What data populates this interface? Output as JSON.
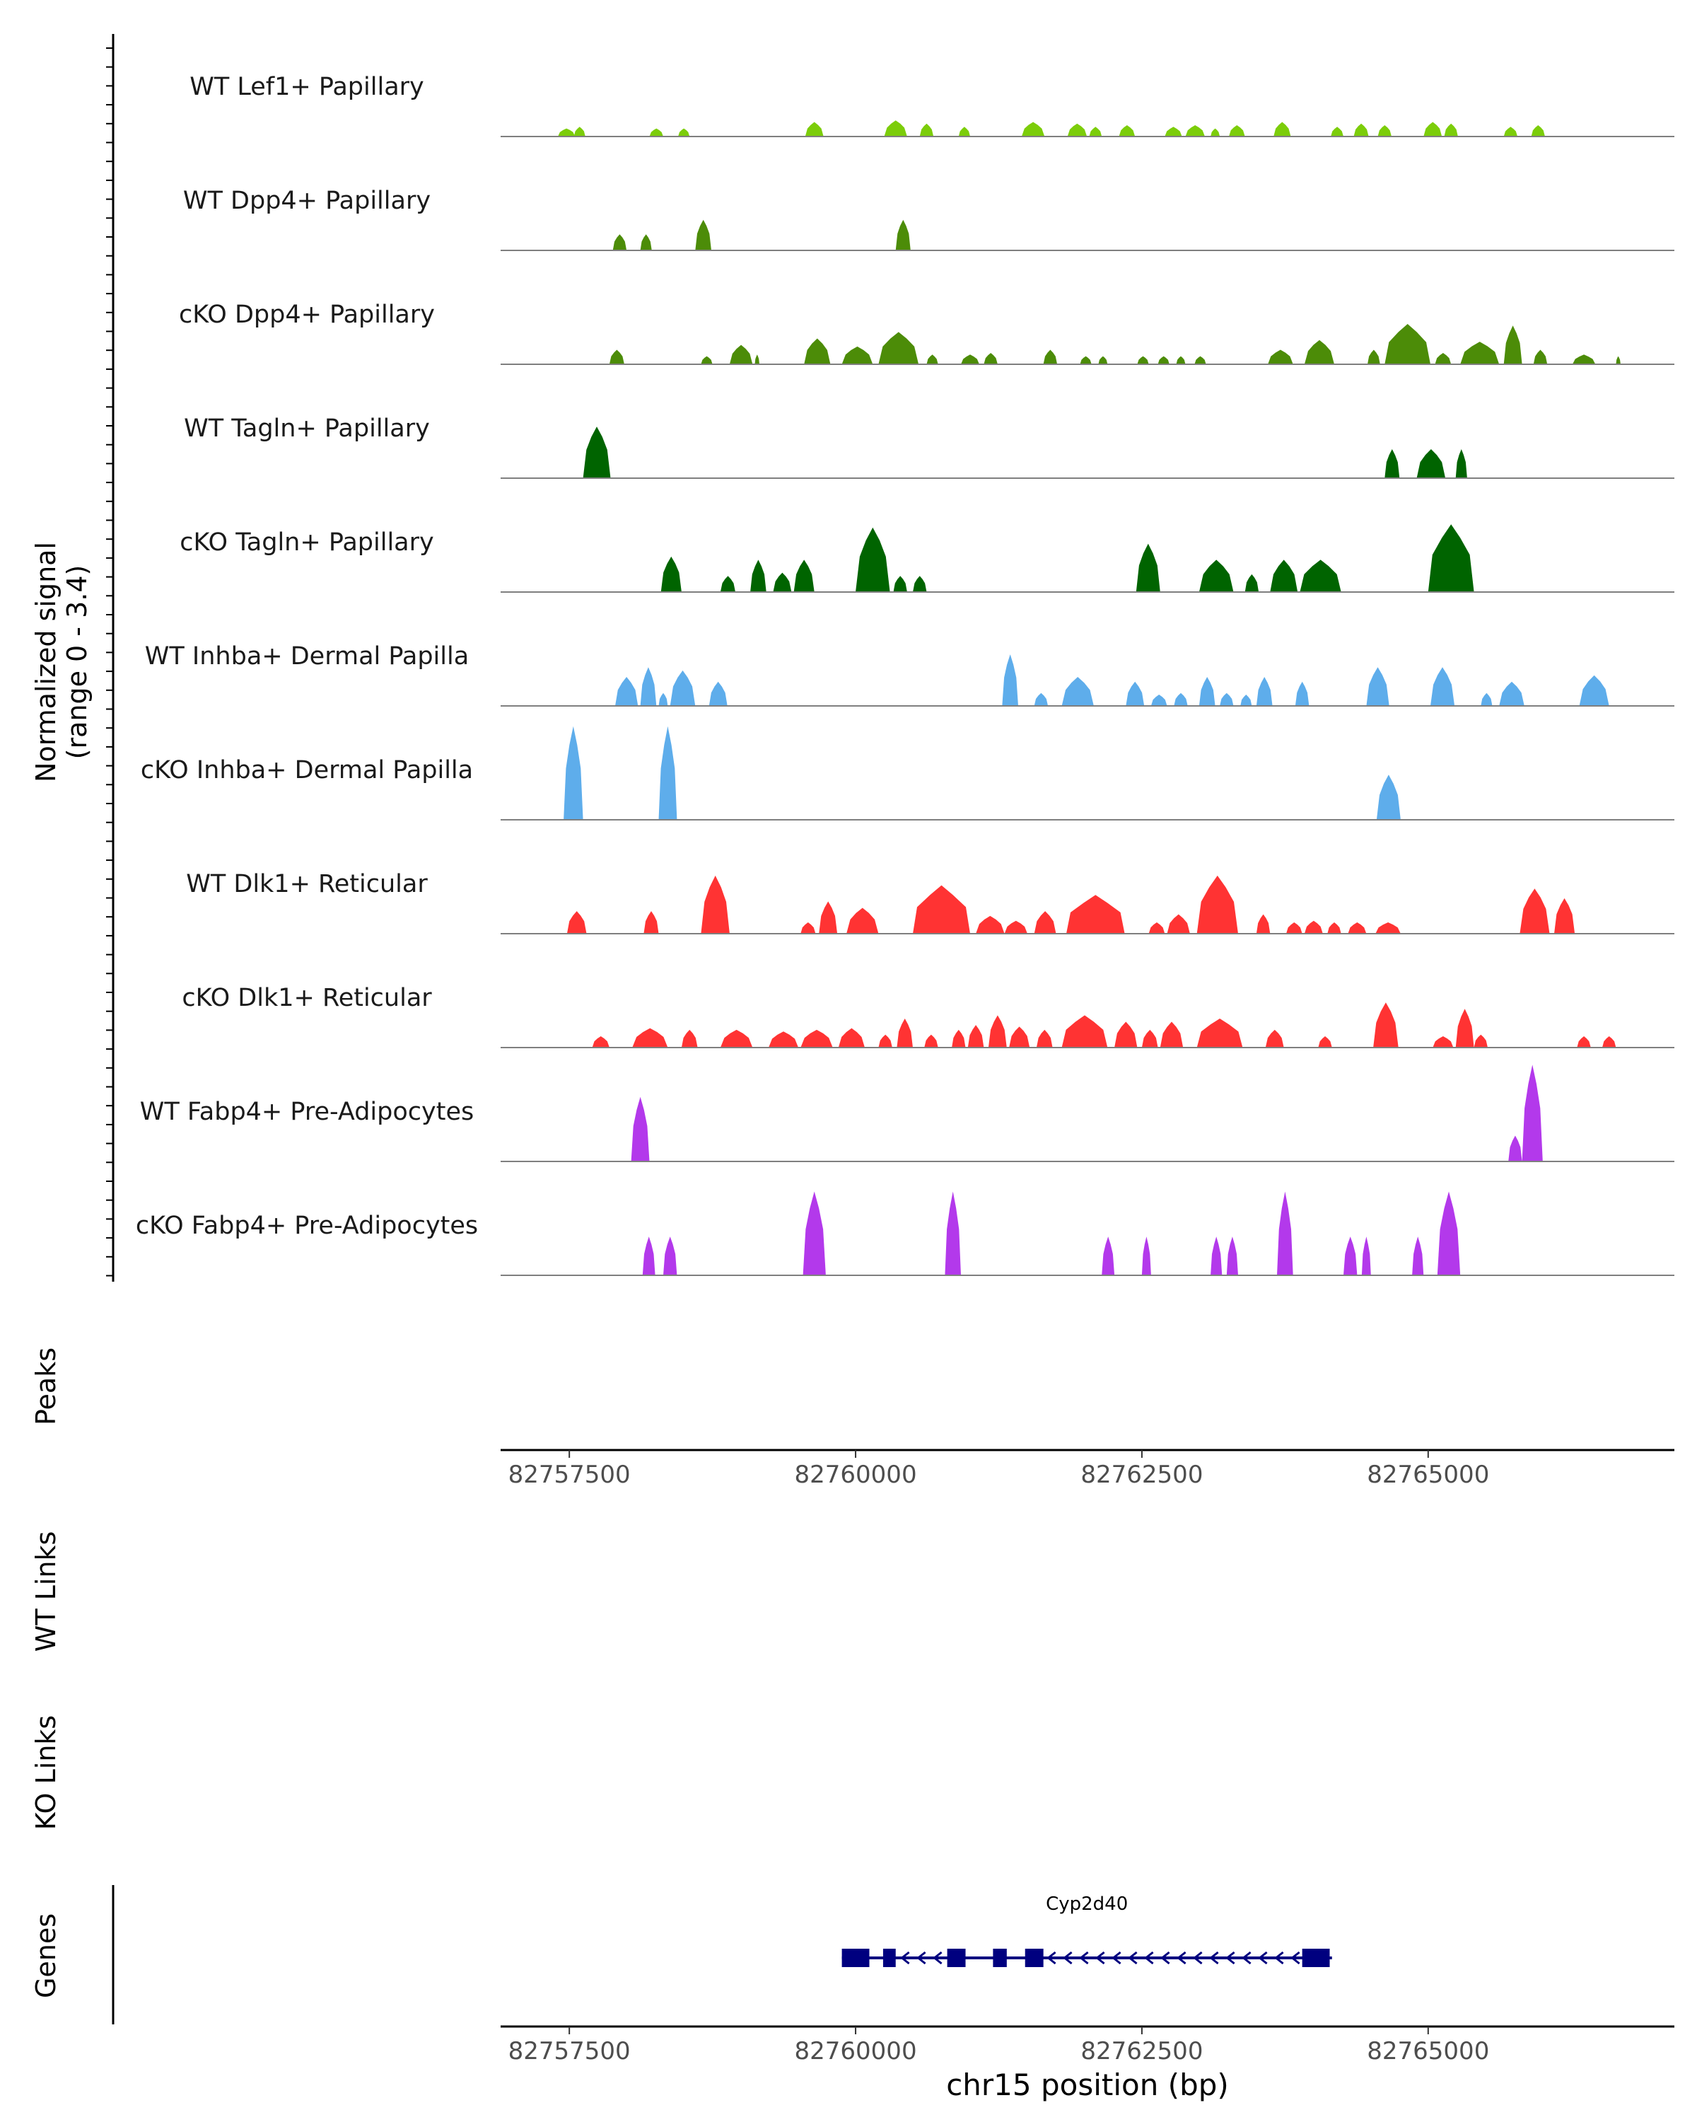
{
  "chart_data": {
    "type": "area",
    "y_axis_label": "Normalized signal",
    "y_axis_range_label": "(range 0 - 3.4)",
    "ylim": [
      0,
      3.4
    ],
    "xlim": [
      82756900,
      82767150
    ],
    "x_label": "chr15 position (bp)",
    "x_ticks": [
      82757500,
      82760000,
      82762500,
      82765000
    ],
    "x_tick_labels": [
      "82757500",
      "82760000",
      "82762500",
      "82765000"
    ],
    "panel_labels": {
      "peaks": "Peaks",
      "wt_links": "WT Links",
      "ko_links": "KO Links",
      "genes": "Genes"
    },
    "tracks": [
      {
        "name": "WT Lef1+ Papillary",
        "color": "#7CCD0A",
        "peaks": [
          [
            82757400,
            82757550,
            0.25
          ],
          [
            82757540,
            82757640,
            0.3
          ],
          [
            82758200,
            82758320,
            0.25
          ],
          [
            82758450,
            82758550,
            0.25
          ],
          [
            82759560,
            82759720,
            0.45
          ],
          [
            82760250,
            82760450,
            0.5
          ],
          [
            82760560,
            82760680,
            0.4
          ],
          [
            82760900,
            82761000,
            0.3
          ],
          [
            82761450,
            82761650,
            0.45
          ],
          [
            82761850,
            82762020,
            0.4
          ],
          [
            82762040,
            82762150,
            0.3
          ],
          [
            82762300,
            82762440,
            0.35
          ],
          [
            82762700,
            82762850,
            0.3
          ],
          [
            82762880,
            82763050,
            0.35
          ],
          [
            82763100,
            82763180,
            0.25
          ],
          [
            82763260,
            82763400,
            0.35
          ],
          [
            82763650,
            82763800,
            0.45
          ],
          [
            82764150,
            82764260,
            0.3
          ],
          [
            82764350,
            82764480,
            0.4
          ],
          [
            82764560,
            82764680,
            0.35
          ],
          [
            82764960,
            82765120,
            0.45
          ],
          [
            82765140,
            82765260,
            0.4
          ],
          [
            82765660,
            82765780,
            0.3
          ],
          [
            82765900,
            82766020,
            0.35
          ]
        ]
      },
      {
        "name": "WT Dpp4+ Papillary",
        "color": "#4C8C08",
        "peaks": [
          [
            82757880,
            82758000,
            0.5
          ],
          [
            82758120,
            82758220,
            0.5
          ],
          [
            82758600,
            82758740,
            0.95
          ],
          [
            82760350,
            82760480,
            0.95
          ]
        ]
      },
      {
        "name": "cKO Dpp4+ Papillary",
        "color": "#4C8C08",
        "peaks": [
          [
            82757850,
            82757980,
            0.45
          ],
          [
            82758650,
            82758750,
            0.25
          ],
          [
            82758900,
            82759100,
            0.6
          ],
          [
            82759120,
            82759160,
            0.3
          ],
          [
            82759550,
            82759780,
            0.8
          ],
          [
            82759880,
            82760150,
            0.55
          ],
          [
            82760200,
            82760550,
            1.0
          ],
          [
            82760620,
            82760720,
            0.3
          ],
          [
            82760920,
            82761080,
            0.3
          ],
          [
            82761120,
            82761240,
            0.35
          ],
          [
            82761640,
            82761760,
            0.45
          ],
          [
            82761960,
            82762060,
            0.25
          ],
          [
            82762120,
            82762200,
            0.25
          ],
          [
            82762460,
            82762560,
            0.25
          ],
          [
            82762640,
            82762740,
            0.25
          ],
          [
            82762800,
            82762880,
            0.25
          ],
          [
            82762960,
            82763060,
            0.25
          ],
          [
            82763600,
            82763820,
            0.45
          ],
          [
            82763920,
            82764180,
            0.75
          ],
          [
            82764470,
            82764580,
            0.45
          ],
          [
            82764620,
            82765020,
            1.25
          ],
          [
            82765060,
            82765200,
            0.35
          ],
          [
            82765280,
            82765620,
            0.7
          ],
          [
            82765660,
            82765820,
            1.2
          ],
          [
            82765920,
            82766040,
            0.45
          ],
          [
            82766260,
            82766460,
            0.3
          ],
          [
            82766640,
            82766680,
            0.25
          ]
        ]
      },
      {
        "name": "WT Tagln+ Papillary",
        "color": "#006400",
        "peaks": [
          [
            82757620,
            82757860,
            1.6
          ],
          [
            82764620,
            82764750,
            0.9
          ],
          [
            82764900,
            82765150,
            0.9
          ],
          [
            82765240,
            82765340,
            0.9
          ]
        ]
      },
      {
        "name": "cKO Tagln+ Papillary",
        "color": "#006400",
        "peaks": [
          [
            82758300,
            82758480,
            1.1
          ],
          [
            82758820,
            82758950,
            0.5
          ],
          [
            82759080,
            82759220,
            1.0
          ],
          [
            82759280,
            82759440,
            0.6
          ],
          [
            82759460,
            82759640,
            1.0
          ],
          [
            82760000,
            82760300,
            2.0
          ],
          [
            82760330,
            82760450,
            0.5
          ],
          [
            82760500,
            82760620,
            0.5
          ],
          [
            82762450,
            82762660,
            1.5
          ],
          [
            82763000,
            82763300,
            1.0
          ],
          [
            82763400,
            82763520,
            0.55
          ],
          [
            82763620,
            82763860,
            1.0
          ],
          [
            82763880,
            82764240,
            1.0
          ],
          [
            82765000,
            82765400,
            2.1
          ]
        ]
      },
      {
        "name": "WT Inhba+ Dermal Papilla",
        "color": "#5EADEB",
        "peaks": [
          [
            82757900,
            82758100,
            0.9
          ],
          [
            82758120,
            82758260,
            1.2
          ],
          [
            82758280,
            82758360,
            0.4
          ],
          [
            82758380,
            82758600,
            1.1
          ],
          [
            82758720,
            82758880,
            0.75
          ],
          [
            82761280,
            82761420,
            1.6
          ],
          [
            82761560,
            82761680,
            0.4
          ],
          [
            82761800,
            82762080,
            0.9
          ],
          [
            82762360,
            82762520,
            0.75
          ],
          [
            82762580,
            82762720,
            0.35
          ],
          [
            82762780,
            82762900,
            0.4
          ],
          [
            82763000,
            82763140,
            0.9
          ],
          [
            82763180,
            82763300,
            0.4
          ],
          [
            82763360,
            82763460,
            0.35
          ],
          [
            82763500,
            82763640,
            0.9
          ],
          [
            82763840,
            82763960,
            0.75
          ],
          [
            82764460,
            82764660,
            1.2
          ],
          [
            82765020,
            82765230,
            1.2
          ],
          [
            82765460,
            82765560,
            0.4
          ],
          [
            82765620,
            82765840,
            0.75
          ],
          [
            82766320,
            82766580,
            0.95
          ]
        ]
      },
      {
        "name": "cKO Inhba+ Dermal Papilla",
        "color": "#5EADEB",
        "peaks": [
          [
            82757450,
            82757620,
            2.9
          ],
          [
            82758280,
            82758440,
            2.9
          ],
          [
            82764550,
            82764760,
            1.4
          ]
        ]
      },
      {
        "name": "WT Dlk1+ Reticular",
        "color": "#FF3333",
        "peaks": [
          [
            82757480,
            82757650,
            0.7
          ],
          [
            82758150,
            82758280,
            0.7
          ],
          [
            82758650,
            82758900,
            1.8
          ],
          [
            82759520,
            82759650,
            0.35
          ],
          [
            82759680,
            82759840,
            1.0
          ],
          [
            82759920,
            82760200,
            0.8
          ],
          [
            82760500,
            82761000,
            1.5
          ],
          [
            82761050,
            82761300,
            0.55
          ],
          [
            82761300,
            82761500,
            0.4
          ],
          [
            82761560,
            82761750,
            0.7
          ],
          [
            82761840,
            82762350,
            1.2
          ],
          [
            82762560,
            82762700,
            0.35
          ],
          [
            82762720,
            82762920,
            0.6
          ],
          [
            82762980,
            82763340,
            1.8
          ],
          [
            82763500,
            82763620,
            0.6
          ],
          [
            82763760,
            82763900,
            0.35
          ],
          [
            82763920,
            82764080,
            0.4
          ],
          [
            82764120,
            82764240,
            0.35
          ],
          [
            82764300,
            82764460,
            0.35
          ],
          [
            82764540,
            82764760,
            0.35
          ],
          [
            82765800,
            82766060,
            1.4
          ],
          [
            82766100,
            82766280,
            1.1
          ]
        ]
      },
      {
        "name": "cKO Dlk1+ Reticular",
        "color": "#FF3333",
        "peaks": [
          [
            82757700,
            82757850,
            0.35
          ],
          [
            82758050,
            82758360,
            0.6
          ],
          [
            82758480,
            82758620,
            0.55
          ],
          [
            82758820,
            82759100,
            0.55
          ],
          [
            82759240,
            82759500,
            0.5
          ],
          [
            82759520,
            82759800,
            0.55
          ],
          [
            82759850,
            82760080,
            0.6
          ],
          [
            82760200,
            82760320,
            0.4
          ],
          [
            82760360,
            82760500,
            0.9
          ],
          [
            82760600,
            82760720,
            0.4
          ],
          [
            82760840,
            82760960,
            0.55
          ],
          [
            82760980,
            82761120,
            0.7
          ],
          [
            82761160,
            82761320,
            1.0
          ],
          [
            82761340,
            82761520,
            0.65
          ],
          [
            82761580,
            82761720,
            0.55
          ],
          [
            82761800,
            82762200,
            1.0
          ],
          [
            82762260,
            82762460,
            0.8
          ],
          [
            82762500,
            82762640,
            0.55
          ],
          [
            82762660,
            82762860,
            0.8
          ],
          [
            82762980,
            82763380,
            0.9
          ],
          [
            82763580,
            82763740,
            0.55
          ],
          [
            82764040,
            82764160,
            0.35
          ],
          [
            82764520,
            82764740,
            1.4
          ],
          [
            82765040,
            82765220,
            0.35
          ],
          [
            82765240,
            82765400,
            1.2
          ],
          [
            82765400,
            82765520,
            0.4
          ],
          [
            82766300,
            82766420,
            0.35
          ],
          [
            82766520,
            82766640,
            0.35
          ]
        ]
      },
      {
        "name": "WT Fabp4+ Pre-Adipocytes",
        "color": "#B339EB",
        "peaks": [
          [
            82758040,
            82758200,
            2.0
          ],
          [
            82765700,
            82765820,
            0.8
          ],
          [
            82765820,
            82766000,
            3.0
          ]
        ]
      },
      {
        "name": "cKO Fabp4+ Pre-Adipocytes",
        "color": "#B339EB",
        "peaks": [
          [
            82758140,
            82758250,
            1.2
          ],
          [
            82758320,
            82758440,
            1.2
          ],
          [
            82759540,
            82759740,
            2.6
          ],
          [
            82760780,
            82760920,
            2.6
          ],
          [
            82762150,
            82762260,
            1.2
          ],
          [
            82762500,
            82762580,
            1.2
          ],
          [
            82763100,
            82763200,
            1.2
          ],
          [
            82763240,
            82763340,
            1.2
          ],
          [
            82763680,
            82763820,
            2.6
          ],
          [
            82764260,
            82764380,
            1.2
          ],
          [
            82764420,
            82764500,
            1.2
          ],
          [
            82764860,
            82764960,
            1.2
          ],
          [
            82765080,
            82765280,
            2.6
          ]
        ]
      }
    ],
    "gene": {
      "name": "Cyp2d40",
      "color": "#00007F",
      "start": 82759880,
      "end": 82764160,
      "strand": "-",
      "exons": [
        [
          82759880,
          82760120
        ],
        [
          82760240,
          82760350
        ],
        [
          82760800,
          82760960
        ],
        [
          82761200,
          82761320
        ],
        [
          82761480,
          82761640
        ],
        [
          82763900,
          82764140
        ]
      ]
    }
  }
}
